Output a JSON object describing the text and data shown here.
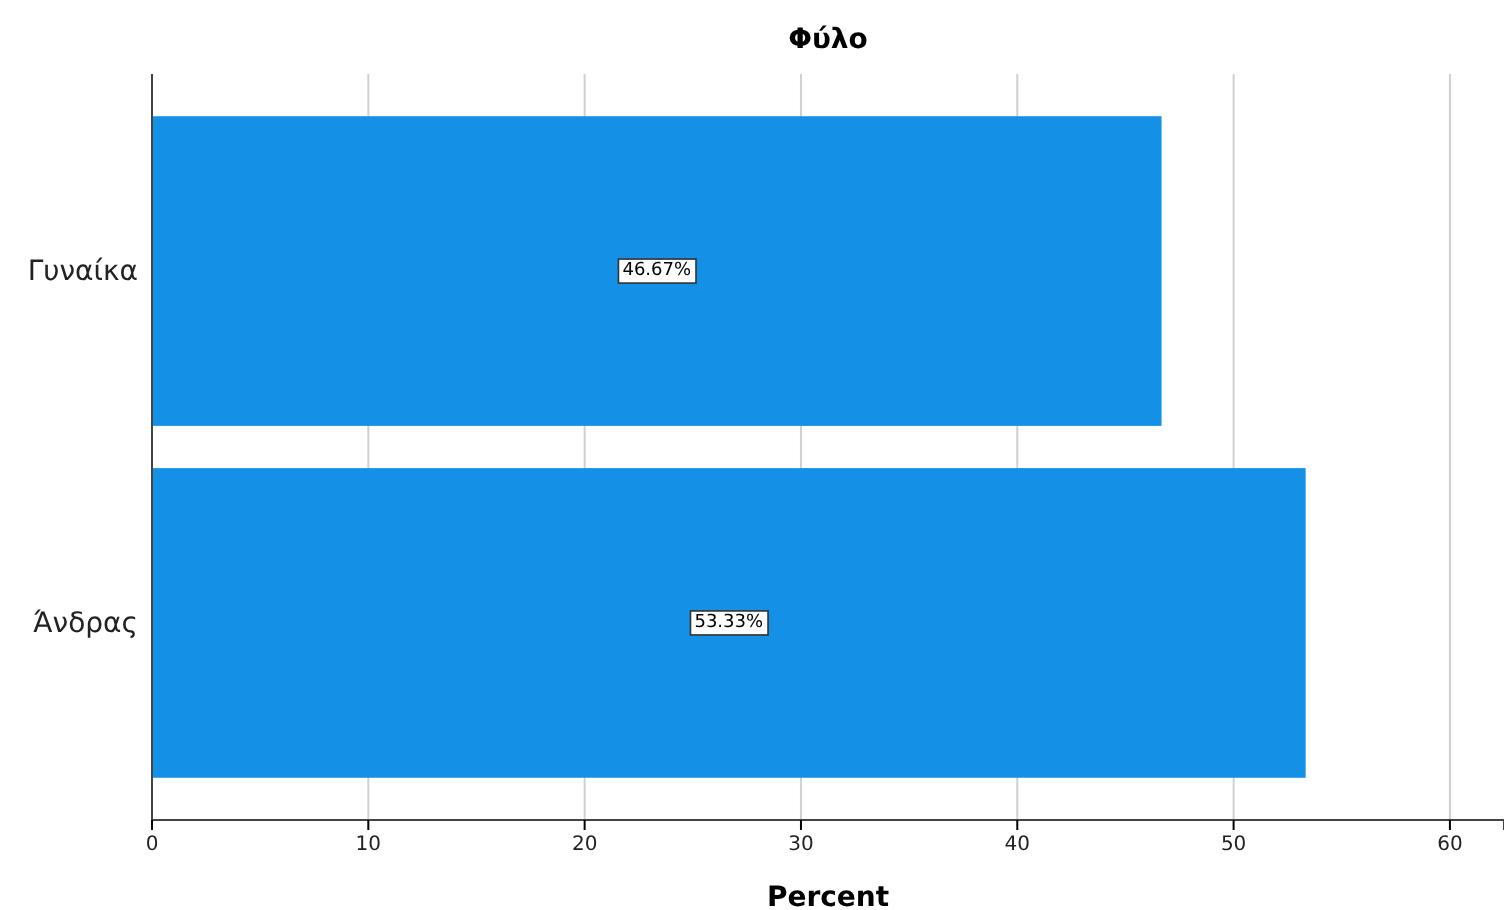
{
  "chart_data": {
    "type": "bar",
    "orientation": "horizontal",
    "title": "Φύλο",
    "xlabel": "Percent",
    "categories": [
      "Γυναίκα",
      "Άνδρας"
    ],
    "values": [
      46.67,
      53.33
    ],
    "value_labels": [
      "46.67%",
      "53.33%"
    ],
    "color": "#1490e6",
    "xlim": [
      0,
      62.5
    ],
    "xticks": [
      0,
      10,
      20,
      30,
      40,
      50,
      60
    ],
    "grid": "x"
  }
}
